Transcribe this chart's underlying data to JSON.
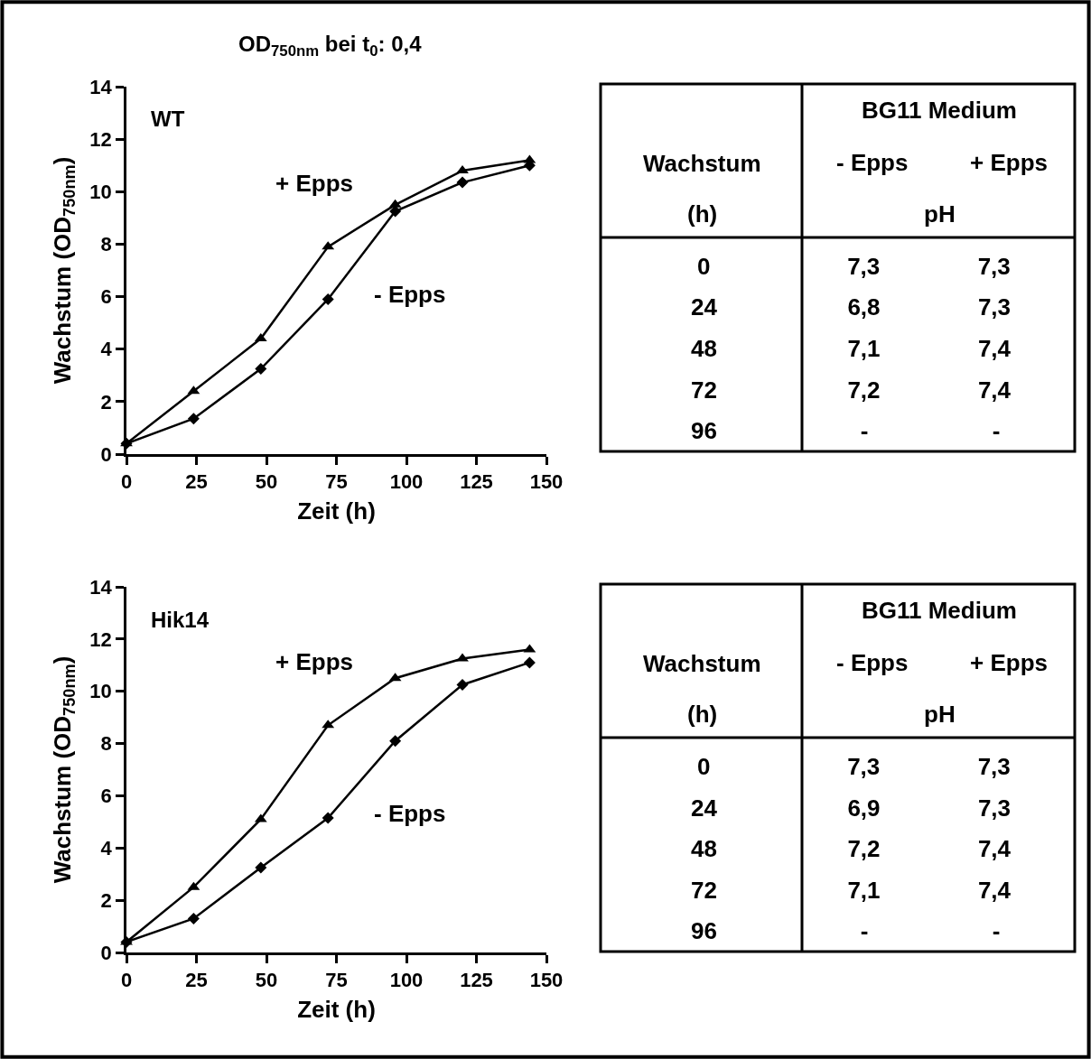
{
  "chart_data": [
    {
      "type": "line",
      "title": "OD$_{750nm}$ bei t$_{0}$: 0,4",
      "annotations": [
        "WT"
      ],
      "xlabel": "Zeit (h)",
      "ylabel": "Wachstum (OD$_{750nm}$)",
      "x": [
        0,
        24,
        48,
        72,
        96,
        120,
        144
      ],
      "xlim": [
        0,
        150
      ],
      "xticks": [
        0,
        25,
        50,
        75,
        100,
        125,
        150
      ],
      "ylim": [
        0,
        14
      ],
      "yticks": [
        0,
        2,
        4,
        6,
        8,
        10,
        12,
        14
      ],
      "line_style": "solid",
      "series": [
        {
          "name": "- Epps",
          "color": "#000000",
          "marker": "diamond",
          "values": [
            0.4,
            1.35,
            3.25,
            5.9,
            9.25,
            10.35,
            11.0
          ]
        },
        {
          "name": "+ Epps",
          "color": "#000000",
          "marker": "triangle",
          "values": [
            0.4,
            2.4,
            4.4,
            7.9,
            9.5,
            10.8,
            11.2
          ]
        }
      ]
    },
    {
      "type": "other",
      "annotations": [
        "BG11 Medium",
        "Wachstum",
        "- Epps",
        "+ Epps",
        "(h)",
        "pH",
        "0 7,3 7,3",
        "24 6,8 7,3",
        "48 7,1 7,4",
        "72 7,2 7,4",
        "96 - -"
      ]
    },
    {
      "type": "line",
      "annotations": [
        "Hik14"
      ],
      "xlabel": "Zeit (h)",
      "ylabel": "Wachstum (OD$_{750nm}$)",
      "x": [
        0,
        24,
        48,
        72,
        96,
        120,
        144
      ],
      "xlim": [
        0,
        150
      ],
      "xticks": [
        0,
        25,
        50,
        75,
        100,
        125,
        150
      ],
      "ylim": [
        0,
        14
      ],
      "yticks": [
        0,
        2,
        4,
        6,
        8,
        10,
        12,
        14
      ],
      "line_style": "solid",
      "series": [
        {
          "name": "- Epps",
          "color": "#000000",
          "marker": "diamond",
          "values": [
            0.4,
            1.3,
            3.25,
            5.15,
            8.1,
            10.25,
            11.1
          ]
        },
        {
          "name": "+ Epps",
          "color": "#000000",
          "marker": "triangle",
          "values": [
            0.4,
            2.5,
            5.1,
            8.7,
            10.5,
            11.25,
            11.6
          ]
        }
      ]
    },
    {
      "type": "other",
      "annotations": [
        "BG11 Medium",
        "Wachstum",
        "- Epps",
        "+ Epps",
        "(h)",
        "pH",
        "0 7,3 7,3",
        "24 6,9 7,3",
        "48 7,2 7,4",
        "72 7,1 7,4",
        "96 - -"
      ]
    }
  ]
}
